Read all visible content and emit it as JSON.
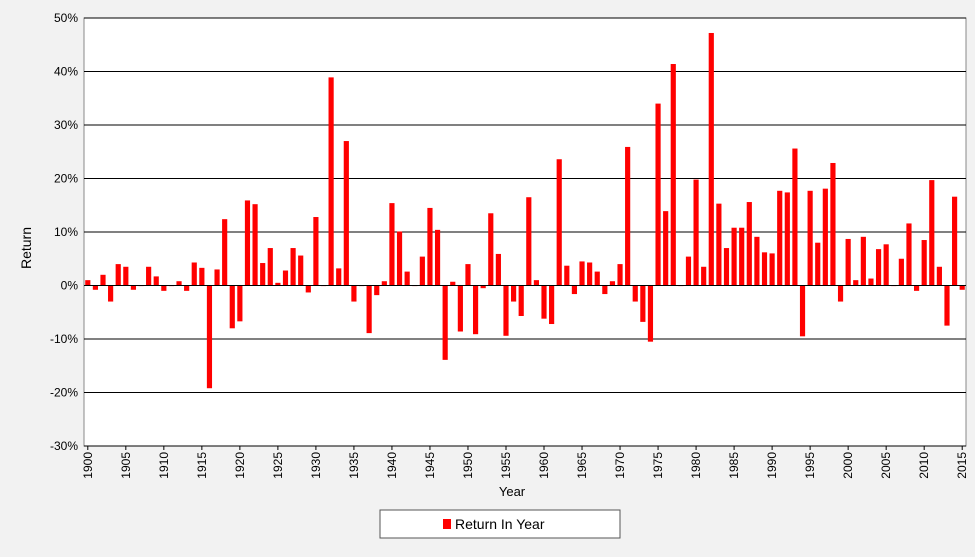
{
  "chart_data": {
    "type": "bar",
    "title": "",
    "xlabel": "Year",
    "ylabel": "Return",
    "ylim": [
      -0.3,
      0.5
    ],
    "y_ticks": [
      -0.3,
      -0.2,
      -0.1,
      0.0,
      0.1,
      0.2,
      0.3,
      0.4,
      0.5
    ],
    "y_tick_labels": [
      "-30%",
      "-20%",
      "-10%",
      "0%",
      "10%",
      "20%",
      "30%",
      "40%",
      "50%"
    ],
    "x_ticks": [
      1900,
      1905,
      1910,
      1915,
      1920,
      1925,
      1930,
      1935,
      1940,
      1945,
      1950,
      1955,
      1960,
      1965,
      1970,
      1975,
      1980,
      1985,
      1990,
      1995,
      2000,
      2005,
      2010,
      2015
    ],
    "x_tick_labels": [
      "1900",
      "1905",
      "1910",
      "1915",
      "1920",
      "1925",
      "1930",
      "1935",
      "1940",
      "1945",
      "1950",
      "1955",
      "1960",
      "1965",
      "1970",
      "1975",
      "1980",
      "1985",
      "1990",
      "1995",
      "2000",
      "2005",
      "2010",
      "2015"
    ],
    "grid": "horizontal",
    "legend_position": "bottom-center",
    "series": [
      {
        "name": "Return In Year",
        "color": "#ff0000",
        "x": [
          1900,
          1901,
          1902,
          1903,
          1904,
          1905,
          1906,
          1907,
          1908,
          1909,
          1910,
          1911,
          1912,
          1913,
          1914,
          1915,
          1916,
          1917,
          1918,
          1919,
          1920,
          1921,
          1922,
          1923,
          1924,
          1925,
          1926,
          1927,
          1928,
          1929,
          1930,
          1931,
          1932,
          1933,
          1934,
          1935,
          1936,
          1937,
          1938,
          1939,
          1940,
          1941,
          1942,
          1943,
          1944,
          1945,
          1946,
          1947,
          1948,
          1949,
          1950,
          1951,
          1952,
          1953,
          1954,
          1955,
          1956,
          1957,
          1958,
          1959,
          1960,
          1961,
          1962,
          1963,
          1964,
          1965,
          1966,
          1967,
          1968,
          1969,
          1970,
          1971,
          1972,
          1973,
          1974,
          1975,
          1976,
          1977,
          1978,
          1979,
          1980,
          1981,
          1982,
          1983,
          1984,
          1985,
          1986,
          1987,
          1988,
          1989,
          1990,
          1991,
          1992,
          1993,
          1994,
          1995,
          1996,
          1997,
          1998,
          1999,
          2000,
          2001,
          2002,
          2003,
          2004,
          2005,
          2006,
          2007,
          2008,
          2009,
          2010,
          2011,
          2012,
          2013,
          2014,
          2015
        ],
        "values": [
          0.01,
          -0.008,
          0.02,
          -0.03,
          0.04,
          0.035,
          -0.008,
          0,
          0.035,
          0.017,
          -0.01,
          0,
          0.008,
          -0.01,
          0.043,
          0.033,
          -0.192,
          0.03,
          0.124,
          -0.08,
          -0.067,
          0.159,
          0.152,
          0.042,
          0.07,
          0.005,
          0.028,
          0.07,
          0.056,
          -0.013,
          0.128,
          0,
          0.389,
          0.032,
          0.27,
          -0.03,
          0,
          -0.089,
          -0.018,
          0.008,
          0.154,
          0.101,
          0.026,
          0,
          0.054,
          0.145,
          0.104,
          -0.139,
          0.007,
          -0.086,
          0.04,
          -0.091,
          -0.005,
          0.135,
          0.059,
          -0.094,
          -0.03,
          -0.057,
          0.165,
          0.01,
          -0.062,
          -0.072,
          0.236,
          0.037,
          -0.016,
          0.045,
          0.043,
          0.026,
          -0.016,
          0.008,
          0.04,
          0.259,
          -0.03,
          -0.068,
          -0.105,
          0.34,
          0.139,
          0.414,
          0,
          0.054,
          0.198,
          0.035,
          0.472,
          0.153,
          0.07,
          0.108,
          0.108,
          0.156,
          0.091,
          0.062,
          0.06,
          0.177,
          0.174,
          0.256,
          -0.095,
          0.177,
          0.08,
          0.181,
          0.229,
          -0.03,
          0.087,
          0.01,
          0.091,
          0.013,
          0.068,
          0.077,
          0,
          0.05,
          0.116,
          -0.01,
          0.085,
          0.197,
          0.035,
          -0.075,
          0.166,
          -0.008
        ]
      }
    ]
  }
}
